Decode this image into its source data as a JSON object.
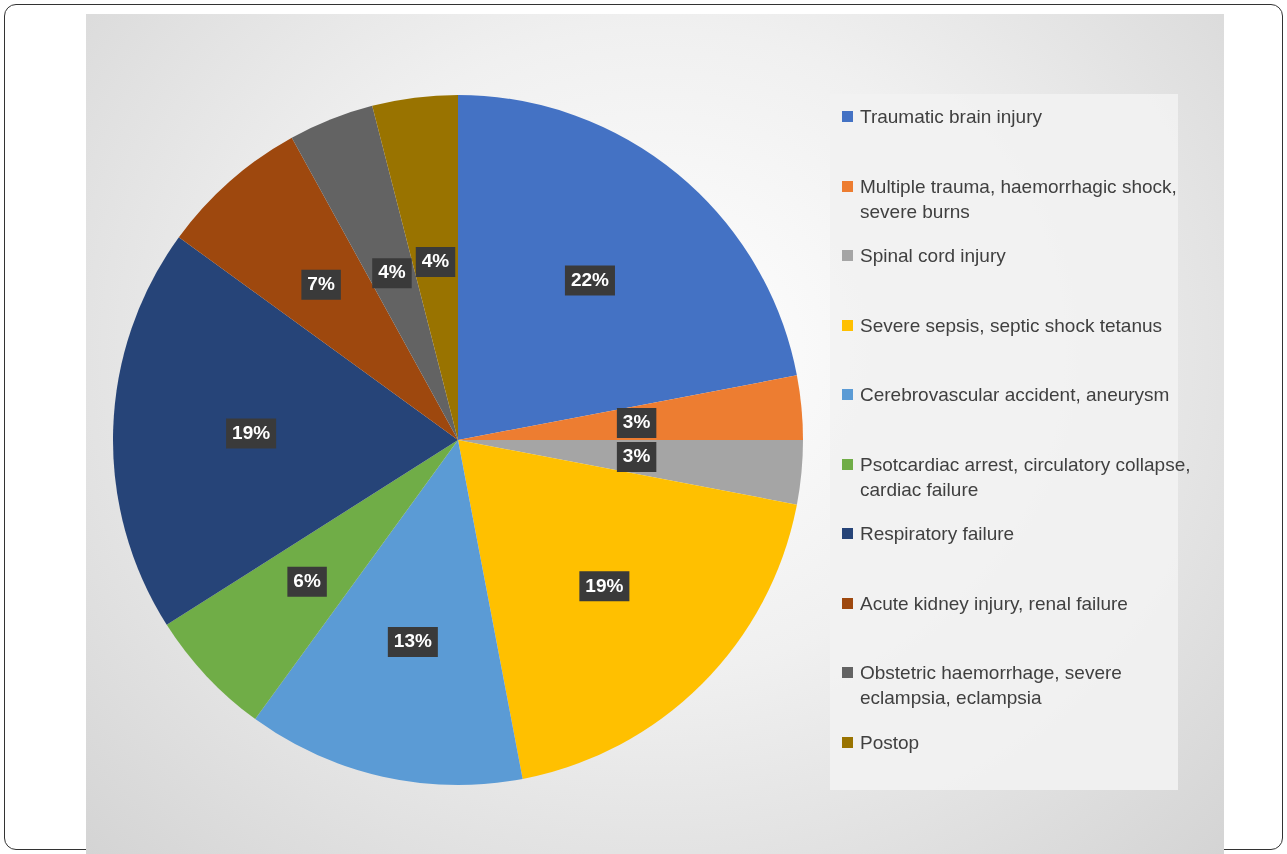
{
  "chart_data": {
    "type": "pie",
    "categories": [
      "Traumatic brain injury",
      "Multiple trauma, haemorrhagic shock, severe burns",
      "Spinal cord injury",
      "Severe sepsis, septic shock tetanus",
      "Cerebrovascular accident, aneurysm",
      "Psotcardiac arrest, circulatory collapse, cardiac failure",
      "Respiratory failure",
      "Acute kidney injury, renal failure",
      "Obstetric haemorrhage, severe eclampsia, eclampsia",
      "Postop"
    ],
    "values": [
      22,
      3,
      3,
      19,
      13,
      6,
      19,
      7,
      4,
      4
    ],
    "value_labels": [
      "22%",
      "3%",
      "3%",
      "19%",
      "13%",
      "6%",
      "19%",
      "7%",
      "4%",
      "4%"
    ],
    "colors": [
      "#4472c4",
      "#ed7d31",
      "#a5a5a5",
      "#ffc000",
      "#5b9bd5",
      "#70ad47",
      "#264478",
      "#9e480e",
      "#636363",
      "#997300"
    ],
    "legend": "right"
  }
}
